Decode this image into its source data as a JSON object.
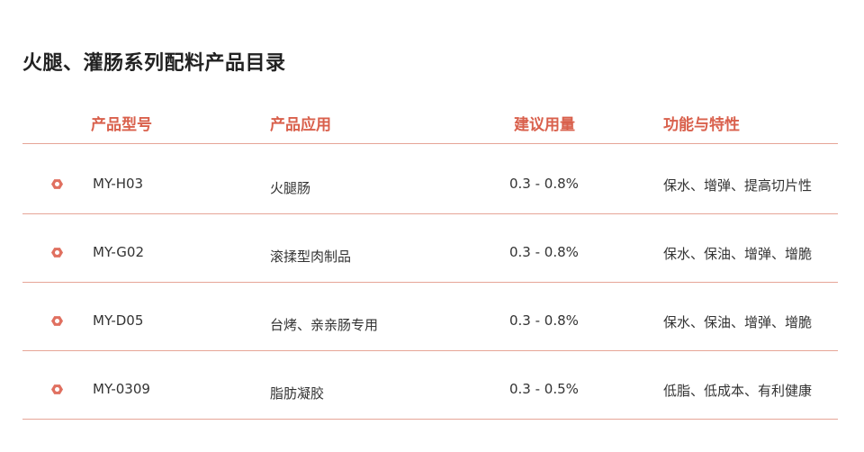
{
  "title": "火腿、灌肠系列配料产品目录",
  "headers": [
    "产品型号",
    "产品应用",
    "建议用量",
    "功能与特性"
  ],
  "rows": [
    {
      "model": "MY-H03",
      "application": "火腿肠",
      "dosage": "0.3 - 0.8%",
      "features": "保水、增弹、提高切片性"
    },
    {
      "model": "MY-G02",
      "application": "滚揉型肉制品",
      "dosage": "0.3 - 0.8%",
      "features": "保水、保油、增弹、增脆"
    },
    {
      "model": "MY-D05",
      "application": "台烤、亲亲肠专用",
      "dosage": "0.3 - 0.8%",
      "features": "保水、保油、增弹、增脆"
    },
    {
      "model": "MY-0309",
      "application": "脂肪凝胶",
      "dosage": "0.3 - 0.5%",
      "features": "低脂、低成本、有利健康"
    }
  ],
  "colors": {
    "accent": "#d9604c",
    "line": "#e6a597",
    "icon": "#e07060"
  }
}
